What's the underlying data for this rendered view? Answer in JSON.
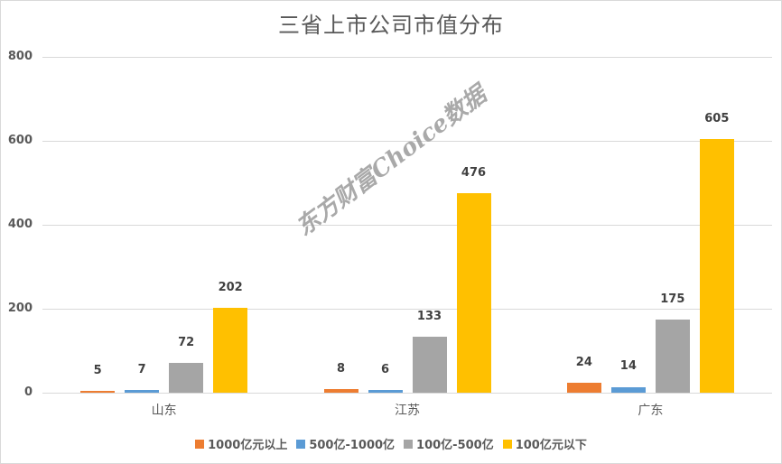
{
  "chart_data": {
    "type": "bar",
    "title": "三省上市公司市值分布",
    "xlabel": "",
    "ylabel": "",
    "ylim": [
      0,
      800
    ],
    "yticks": [
      0,
      200,
      400,
      600,
      800
    ],
    "grid": true,
    "legend_position": "bottom",
    "categories": [
      "山东",
      "江苏",
      "广东"
    ],
    "series": [
      {
        "name": "1000亿元以上",
        "color": "#ED7D31",
        "values": [
          5,
          8,
          24
        ]
      },
      {
        "name": "500亿-1000亿",
        "color": "#5B9BD5",
        "values": [
          7,
          6,
          14
        ]
      },
      {
        "name": "100亿-500亿",
        "color": "#A5A5A5",
        "values": [
          72,
          133,
          175
        ]
      },
      {
        "name": "100亿元以下",
        "color": "#FFC000",
        "values": [
          202,
          476,
          605
        ]
      }
    ],
    "annotations": [
      "东方财富Choice数据"
    ]
  },
  "watermark": "东方财富Choice数据"
}
